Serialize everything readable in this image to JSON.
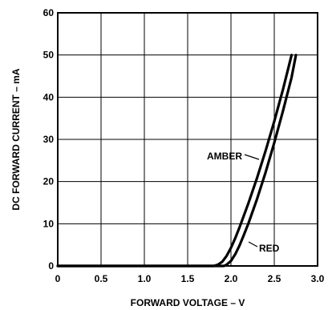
{
  "chart_data": {
    "type": "line",
    "title": "",
    "xlabel": "FORWARD VOLTAGE – V",
    "ylabel": "DC FORWARD CURRENT – mA",
    "xlim": [
      0,
      3.0
    ],
    "ylim": [
      0,
      60
    ],
    "x_ticks": [
      "0",
      "0.5",
      "1.0",
      "1.5",
      "2.0",
      "2.5",
      "3.0"
    ],
    "y_ticks": [
      "0",
      "10",
      "20",
      "30",
      "40",
      "50",
      "60"
    ],
    "grid": true,
    "series": [
      {
        "name": "AMBER",
        "points": [
          [
            0,
            0
          ],
          [
            1.8,
            0
          ],
          [
            1.85,
            0.3
          ],
          [
            1.9,
            1.0
          ],
          [
            1.95,
            2.4
          ],
          [
            2.0,
            4.3
          ],
          [
            2.05,
            6.6
          ],
          [
            2.1,
            9.2
          ],
          [
            2.2,
            14.8
          ],
          [
            2.3,
            20.8
          ],
          [
            2.4,
            27.3
          ],
          [
            2.5,
            34.3
          ],
          [
            2.6,
            41.8
          ],
          [
            2.7,
            50.0
          ]
        ]
      },
      {
        "name": "RED",
        "points": [
          [
            0,
            0
          ],
          [
            1.92,
            0
          ],
          [
            1.95,
            0.3
          ],
          [
            2.0,
            1.2
          ],
          [
            2.05,
            2.8
          ],
          [
            2.1,
            4.9
          ],
          [
            2.15,
            7.4
          ],
          [
            2.2,
            10.0
          ],
          [
            2.3,
            15.8
          ],
          [
            2.4,
            22.2
          ],
          [
            2.5,
            29.2
          ],
          [
            2.6,
            36.7
          ],
          [
            2.7,
            44.7
          ],
          [
            2.75,
            50.0
          ]
        ]
      }
    ]
  }
}
